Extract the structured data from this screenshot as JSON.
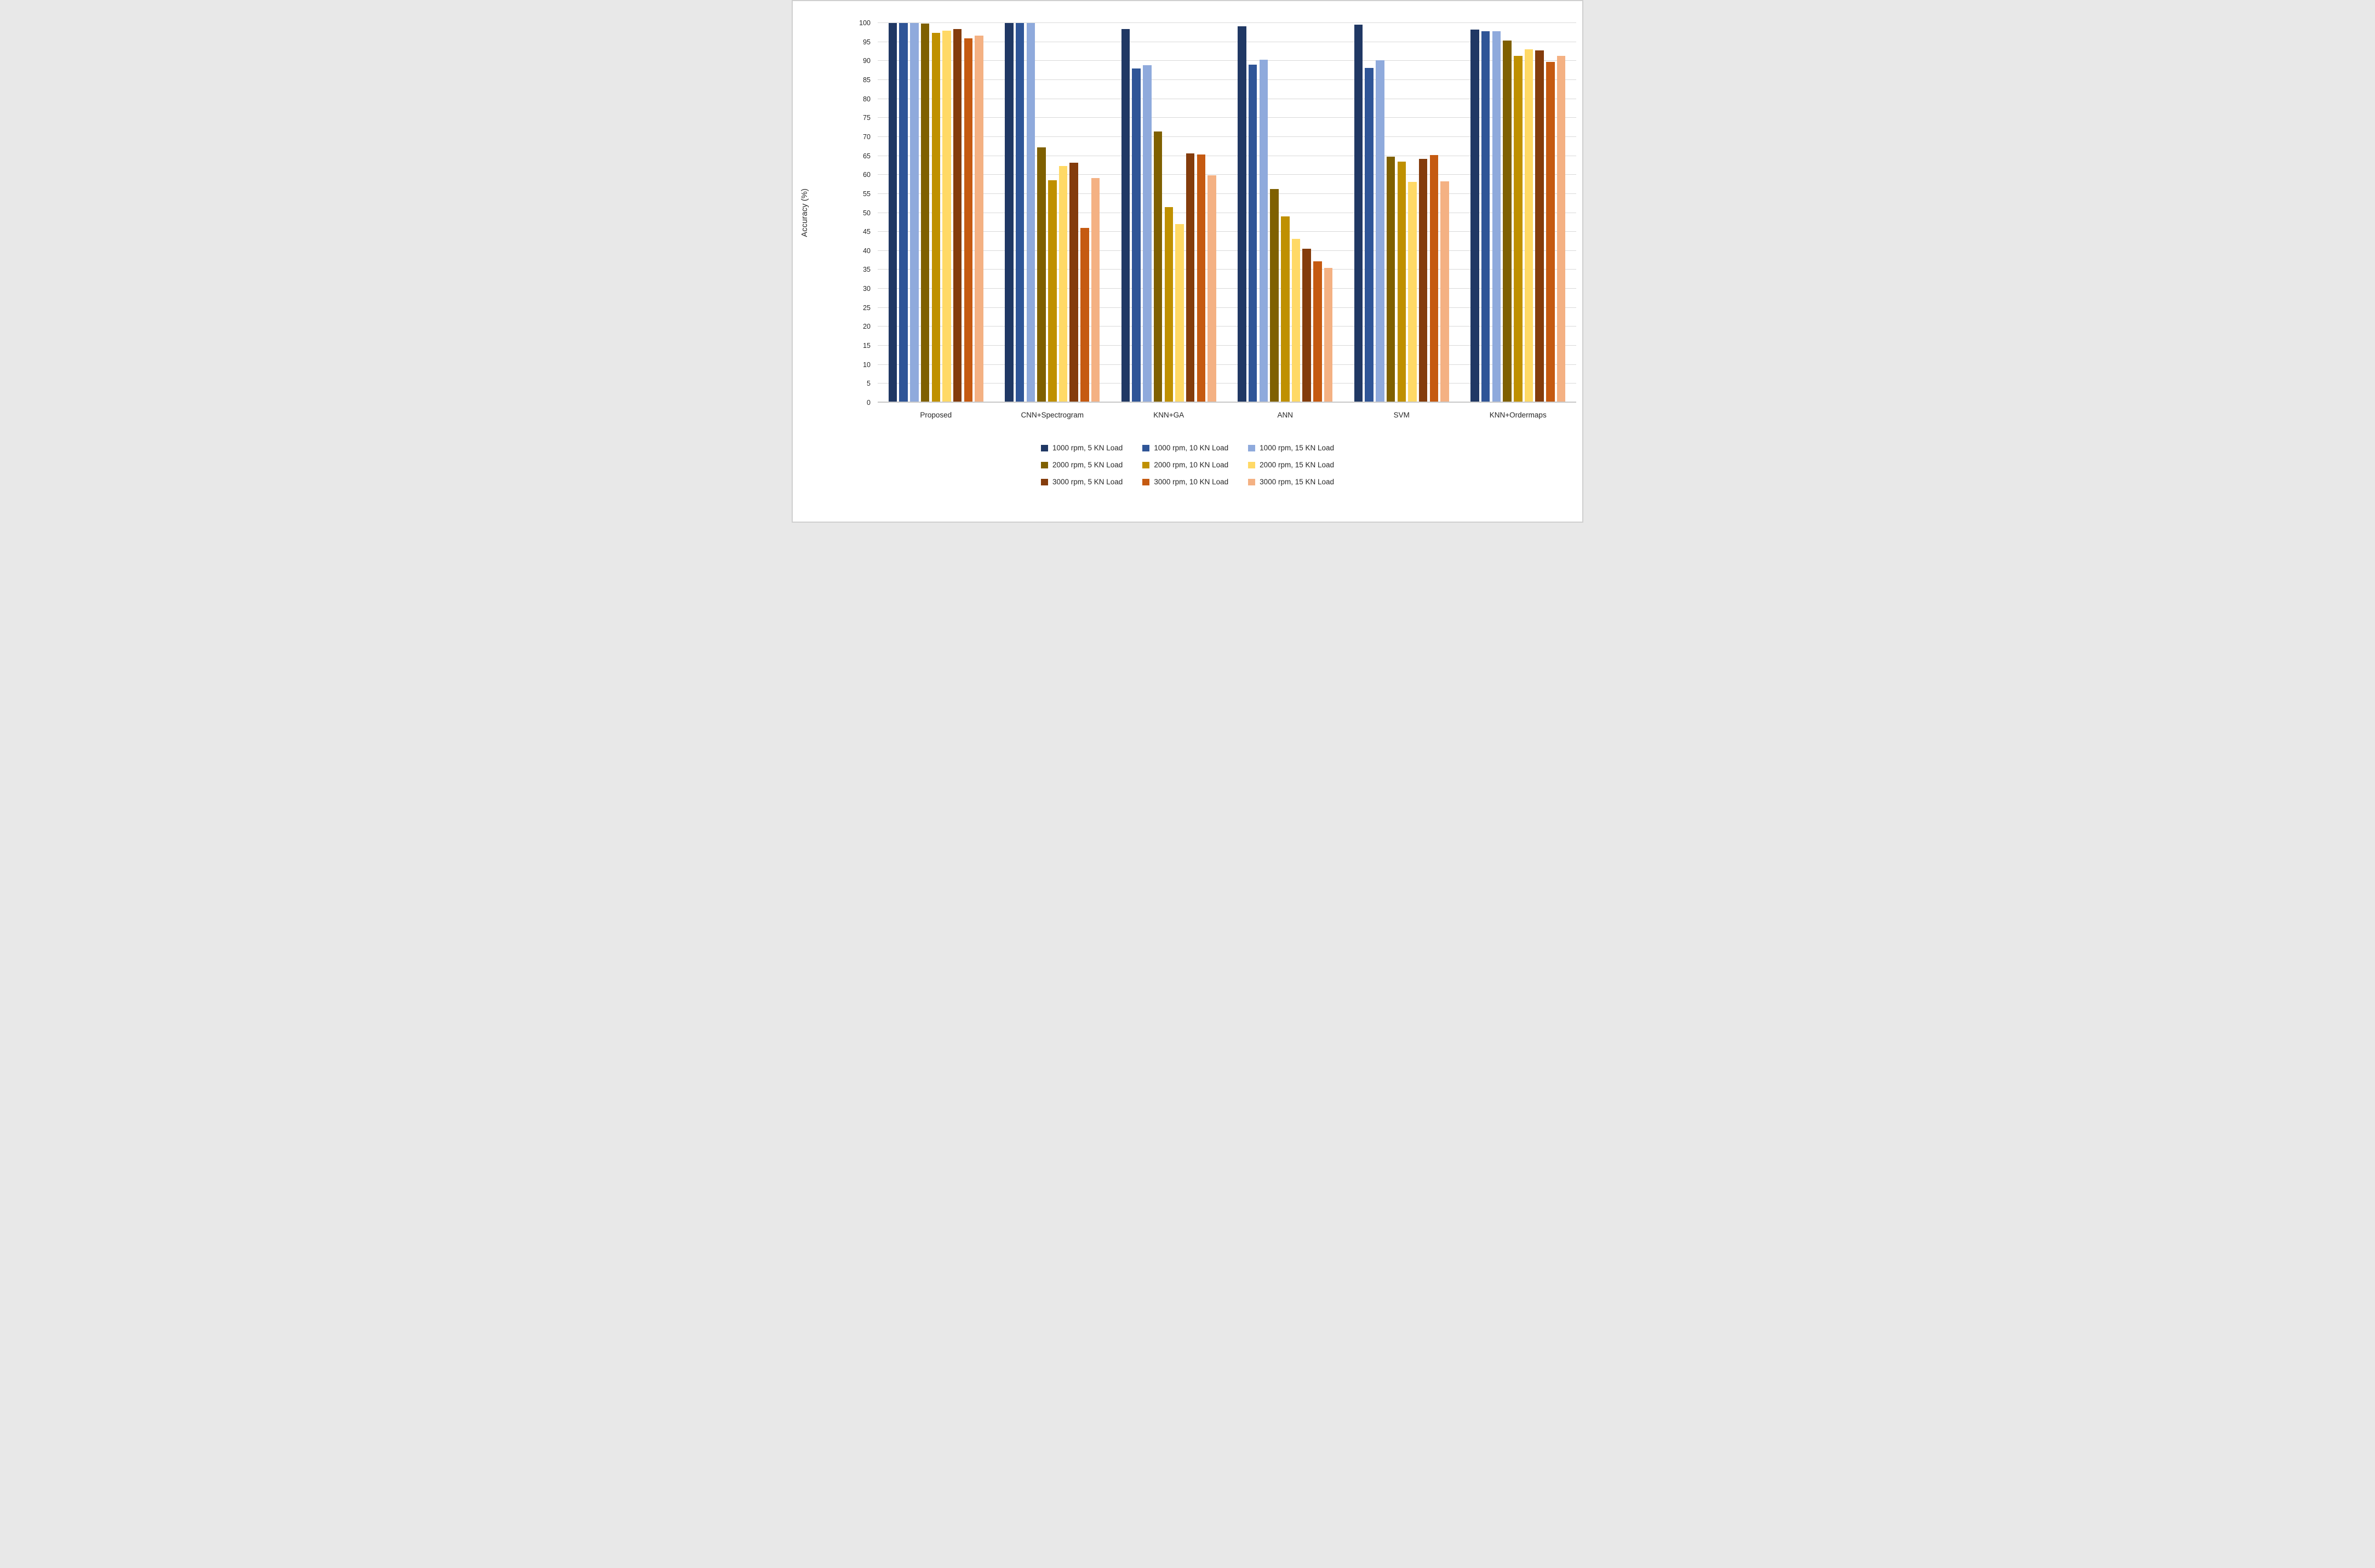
{
  "chart_data": {
    "type": "bar",
    "title": "",
    "xlabel": "",
    "ylabel": "Accuracy (%)",
    "ylim": [
      0,
      100
    ],
    "ytick_step": 5,
    "grid": true,
    "legend_position": "bottom",
    "legend_columns": 3,
    "gridline_color": "#d9d9d9",
    "categories": [
      "Proposed",
      "CNN+Spectrogram",
      "KNN+GA",
      "ANN",
      "SVM",
      "KNN+Ordermaps"
    ],
    "series": [
      {
        "name": "1000 rpm, 5 KN Load",
        "color": "#203864",
        "values": [
          100,
          100,
          98.4,
          99.2,
          99.6,
          98.2
        ]
      },
      {
        "name": "1000 rpm, 10 KN Load",
        "color": "#2F5597",
        "values": [
          100,
          100,
          88.0,
          89.1,
          88.2,
          97.9
        ]
      },
      {
        "name": "1000 rpm, 15 KN Load",
        "color": "#8FAADC",
        "values": [
          100,
          100,
          88.9,
          90.4,
          90.2,
          97.8
        ]
      },
      {
        "name": "2000 rpm, 5 KN Load",
        "color": "#7F6000",
        "values": [
          99.8,
          67.3,
          71.5,
          56.3,
          64.8,
          95.4
        ]
      },
      {
        "name": "2000 rpm, 10 KN Load",
        "color": "#BF9000",
        "values": [
          97.4,
          58.6,
          51.5,
          49.0,
          63.5,
          91.3
        ]
      },
      {
        "name": "2000 rpm, 15 KN Load",
        "color": "#FFD966",
        "values": [
          98.0,
          62.3,
          47.0,
          43.1,
          58.1,
          93.1
        ]
      },
      {
        "name": "3000 rpm, 5 KN Load",
        "color": "#843C0C",
        "values": [
          98.4,
          63.2,
          65.7,
          40.6,
          64.2,
          92.8
        ]
      },
      {
        "name": "3000 rpm, 10 KN Load",
        "color": "#C55A11",
        "values": [
          96.0,
          46.1,
          65.3,
          37.3,
          65.2,
          89.8
        ]
      },
      {
        "name": "3000 rpm, 15 KN Load",
        "color": "#F4B183",
        "values": [
          96.7,
          59.2,
          59.9,
          35.5,
          58.3,
          91.4
        ]
      }
    ]
  }
}
